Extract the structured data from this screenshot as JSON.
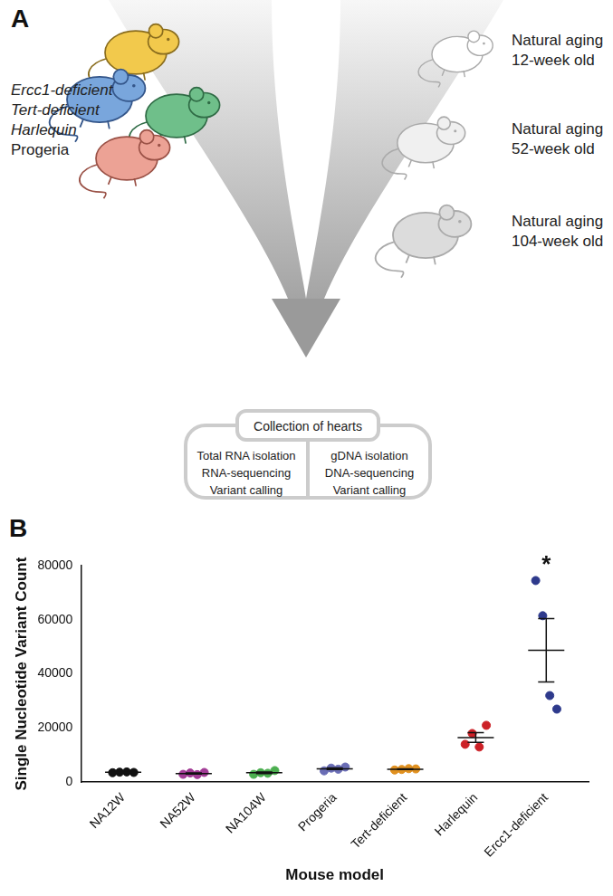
{
  "panel_a": {
    "label": "A",
    "models": [
      "Ercc1-deficient",
      "Tert-deficient",
      "Harlequin",
      "Progeria"
    ],
    "natural_aging": [
      [
        "Natural aging",
        "12-week old"
      ],
      [
        "Natural aging",
        "52-week old"
      ],
      [
        "Natural aging",
        "104-week old"
      ]
    ],
    "collection": "Collection of hearts",
    "rna_steps": [
      "Total RNA isolation",
      "RNA-sequencing",
      "Variant calling"
    ],
    "dna_steps": [
      "gDNA isolation",
      "DNA-sequencing",
      "Variant calling"
    ]
  },
  "panel_b": {
    "label": "B"
  },
  "chart_data": {
    "type": "scatter",
    "categories": [
      "NA12W",
      "NA52W",
      "NA104W",
      "Progeria",
      "Tert-deficient",
      "Harlequin",
      "Ercc1-deficient"
    ],
    "colors": [
      "#111111",
      "#a23c96",
      "#4caf50",
      "#6a6db5",
      "#e0901f",
      "#cc2127",
      "#2e3a8c"
    ],
    "points": [
      [
        3500,
        3700,
        3800,
        3600
      ],
      [
        2900,
        3400,
        2800,
        3600
      ],
      [
        2900,
        3500,
        3300,
        4300
      ],
      [
        4200,
        5200,
        4800,
        5600
      ],
      [
        4500,
        4700,
        5000,
        4900
      ],
      [
        14000,
        18000,
        13000,
        21000
      ],
      [
        74500,
        61500,
        32000,
        27000
      ]
    ],
    "means": [
      3650,
      3200,
      3500,
      4950,
      4800,
      16500,
      48750
    ],
    "sem": [
      70,
      190,
      300,
      300,
      120,
      1800,
      11700
    ],
    "ylim": [
      0,
      80000
    ],
    "yticks": [
      0,
      20000,
      40000,
      60000,
      80000
    ],
    "x_label": "Mouse model",
    "y_label": "Single Nucleotide Variant Count",
    "annotations": [
      {
        "category": "Ercc1-deficient",
        "text": "*"
      }
    ],
    "grid": false
  }
}
